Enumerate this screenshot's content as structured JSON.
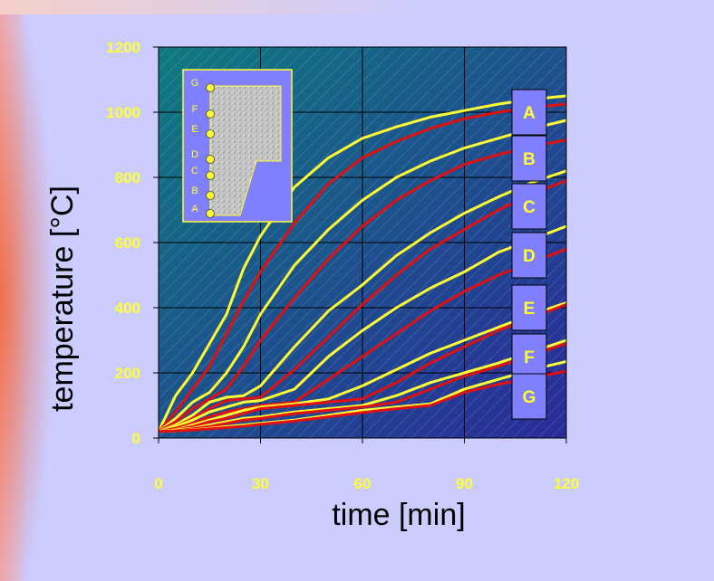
{
  "chart_data": {
    "type": "line",
    "xlabel": "time [min]",
    "ylabel": "temperature [°C]",
    "x": [
      0,
      5,
      10,
      15,
      20,
      25,
      30,
      40,
      50,
      60,
      70,
      80,
      90,
      100,
      110,
      120
    ],
    "series": [
      {
        "color": "#ffff33",
        "values": [
          20,
          130,
          200,
          290,
          380,
          520,
          620,
          770,
          860,
          920,
          955,
          985,
          1005,
          1025,
          1040,
          1050
        ]
      },
      {
        "color": "#e01010",
        "values": [
          20,
          80,
          150,
          220,
          320,
          420,
          510,
          660,
          780,
          860,
          910,
          950,
          980,
          1000,
          1015,
          1025
        ]
      },
      {
        "color": "#ffff33",
        "values": [
          20,
          60,
          110,
          140,
          200,
          280,
          380,
          530,
          640,
          730,
          800,
          850,
          890,
          920,
          950,
          975
        ]
      },
      {
        "color": "#e01010",
        "values": [
          20,
          50,
          90,
          120,
          150,
          220,
          300,
          430,
          550,
          650,
          730,
          790,
          840,
          870,
          895,
          915
        ]
      },
      {
        "color": "#ffff33",
        "values": [
          20,
          40,
          70,
          110,
          125,
          130,
          160,
          280,
          390,
          470,
          560,
          630,
          690,
          740,
          785,
          820
        ]
      },
      {
        "color": "#e01010",
        "values": [
          20,
          35,
          60,
          90,
          115,
          120,
          125,
          210,
          310,
          410,
          500,
          580,
          640,
          700,
          750,
          790
        ]
      },
      {
        "color": "#ffff33",
        "values": [
          20,
          35,
          55,
          80,
          95,
          110,
          115,
          150,
          250,
          330,
          400,
          460,
          510,
          570,
          610,
          650
        ]
      },
      {
        "color": "#e01010",
        "values": [
          20,
          30,
          45,
          65,
          80,
          90,
          100,
          110,
          180,
          250,
          320,
          390,
          450,
          500,
          540,
          580
        ]
      },
      {
        "color": "#ffff33",
        "values": [
          20,
          25,
          40,
          55,
          70,
          85,
          95,
          105,
          120,
          160,
          210,
          260,
          300,
          340,
          380,
          415
        ]
      },
      {
        "color": "#e01010",
        "values": [
          20,
          25,
          35,
          50,
          60,
          75,
          90,
          100,
          110,
          120,
          170,
          230,
          280,
          330,
          370,
          410
        ]
      },
      {
        "color": "#ffff33",
        "values": [
          20,
          25,
          30,
          40,
          50,
          60,
          65,
          80,
          90,
          100,
          130,
          170,
          200,
          230,
          265,
          300
        ]
      },
      {
        "color": "#e01010",
        "values": [
          20,
          22,
          28,
          35,
          45,
          55,
          60,
          75,
          85,
          95,
          110,
          150,
          190,
          220,
          255,
          290
        ]
      },
      {
        "color": "#ffff33",
        "values": [
          20,
          22,
          25,
          30,
          35,
          40,
          45,
          55,
          70,
          85,
          95,
          105,
          150,
          180,
          210,
          235
        ]
      },
      {
        "color": "#e01010",
        "values": [
          20,
          22,
          24,
          28,
          32,
          36,
          42,
          52,
          65,
          78,
          90,
          100,
          140,
          165,
          185,
          205
        ]
      }
    ],
    "curve_labels": [
      "A",
      "B",
      "C",
      "D",
      "E",
      "F",
      "G"
    ],
    "inset_labels": [
      "G",
      "F",
      "E",
      "D",
      "C",
      "B",
      "A"
    ],
    "xlim": [
      0,
      120
    ],
    "xticks": [
      0,
      30,
      60,
      90,
      120
    ],
    "ylim": [
      0,
      1200
    ],
    "yticks": [
      0,
      200,
      400,
      600,
      800,
      1000,
      1200
    ],
    "grid": true
  }
}
